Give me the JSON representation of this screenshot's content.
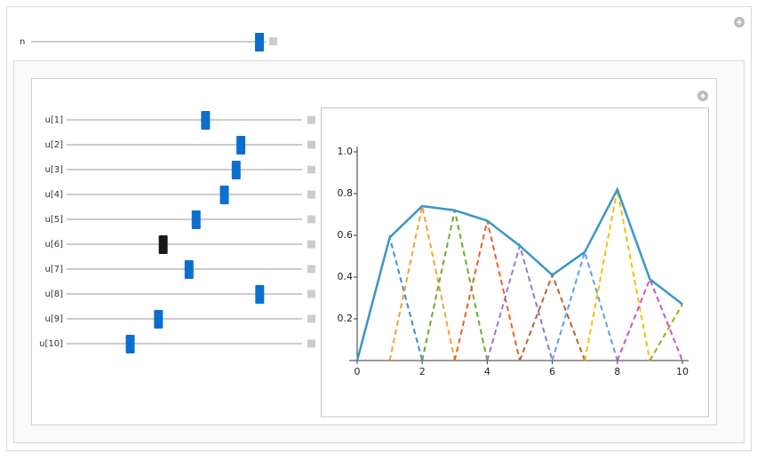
{
  "controls": {
    "n_label": "n",
    "slider_labels": [
      "u[1]",
      "u[2]",
      "u[3]",
      "u[4]",
      "u[5]",
      "u[6]",
      "u[7]",
      "u[8]",
      "u[9]",
      "u[10]"
    ]
  },
  "chart_data": {
    "type": "line",
    "x": [
      0,
      1,
      2,
      3,
      4,
      5,
      6,
      7,
      8,
      9,
      10
    ],
    "series": [
      {
        "color": "#3a96c6",
        "values": [
          0,
          0.59,
          0.74,
          0.72,
          0.67,
          0.55,
          0.41,
          0.52,
          0.82,
          0.39,
          0.27
        ]
      }
    ],
    "basis_colors": [
      "#3a8fd0",
      "#f5a030",
      "#6cac2c",
      "#e56424",
      "#9078d8",
      "#b8642c",
      "#5aa0f0",
      "#f5c000",
      "#d050c8",
      "#a8a818"
    ],
    "xlim": [
      0,
      10
    ],
    "ylim": [
      0,
      1
    ],
    "xticks": [
      0,
      2,
      4,
      6,
      8,
      10
    ],
    "yticks": [
      0.2,
      0.4,
      0.6,
      0.8,
      {
        "value": 1,
        "label": "1.0"
      }
    ]
  }
}
